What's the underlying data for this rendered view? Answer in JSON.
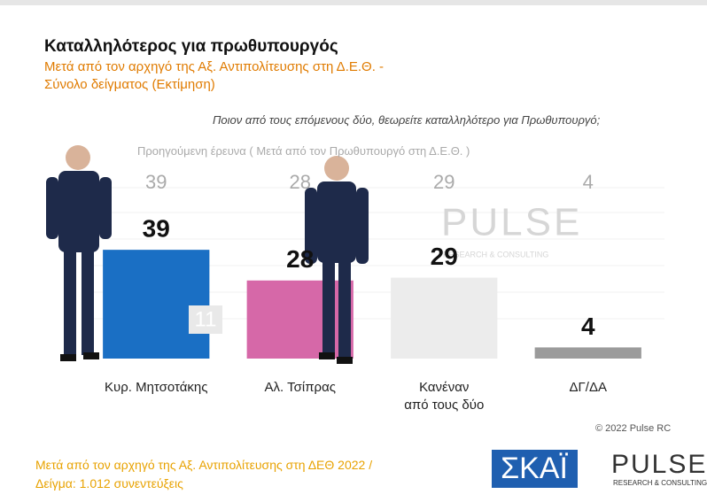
{
  "chart_data": {
    "type": "bar",
    "title": "Καταλληλότερος για πρωθυπουργός",
    "subtitle": "Μετά από τον αρχηγό της Αξ. Αντιπολίτευσης στη Δ.Ε.Θ. -\nΣύνολο δείγματος   (Εκτίμηση)",
    "question": "Ποιον από τους επόμενους δύο, θεωρείτε καταλληλότερο για Πρωθυπουργό;",
    "previous": {
      "label": "Προηγούμενη έρευνα  ( Μετά από τον Πρωθυπουργό στη Δ.Ε.Θ. )",
      "values": [
        39,
        28,
        29,
        4
      ]
    },
    "categories": [
      "Κυρ. Μητσοτάκης",
      "Αλ. Τσίπρας",
      "Κανέναν\nαπό τους δύο",
      "ΔΓ/ΔΑ"
    ],
    "values": [
      39,
      28,
      29,
      4
    ],
    "colors": [
      "#1a6fc4",
      "#d668a8",
      "#ececec",
      "#9b9b9b"
    ],
    "ylim": [
      0,
      100
    ],
    "annotation": "11",
    "watermark": "PULSE",
    "watermark_sub": "RESEARCH & CONSULTING",
    "copyright": "© 2022 Pulse RC",
    "footer": "Μετά από τον αρχηγό της Αξ. Αντιπολίτευσης στη ΔΕΘ  2022  /\nΔείγμα:  1.012 συνεντεύξεις",
    "logo_skai": "ΣΚΑΪ",
    "logo_pulse": "PULSE",
    "logo_pulse_sub": "RESEARCH & CONSULTING"
  }
}
